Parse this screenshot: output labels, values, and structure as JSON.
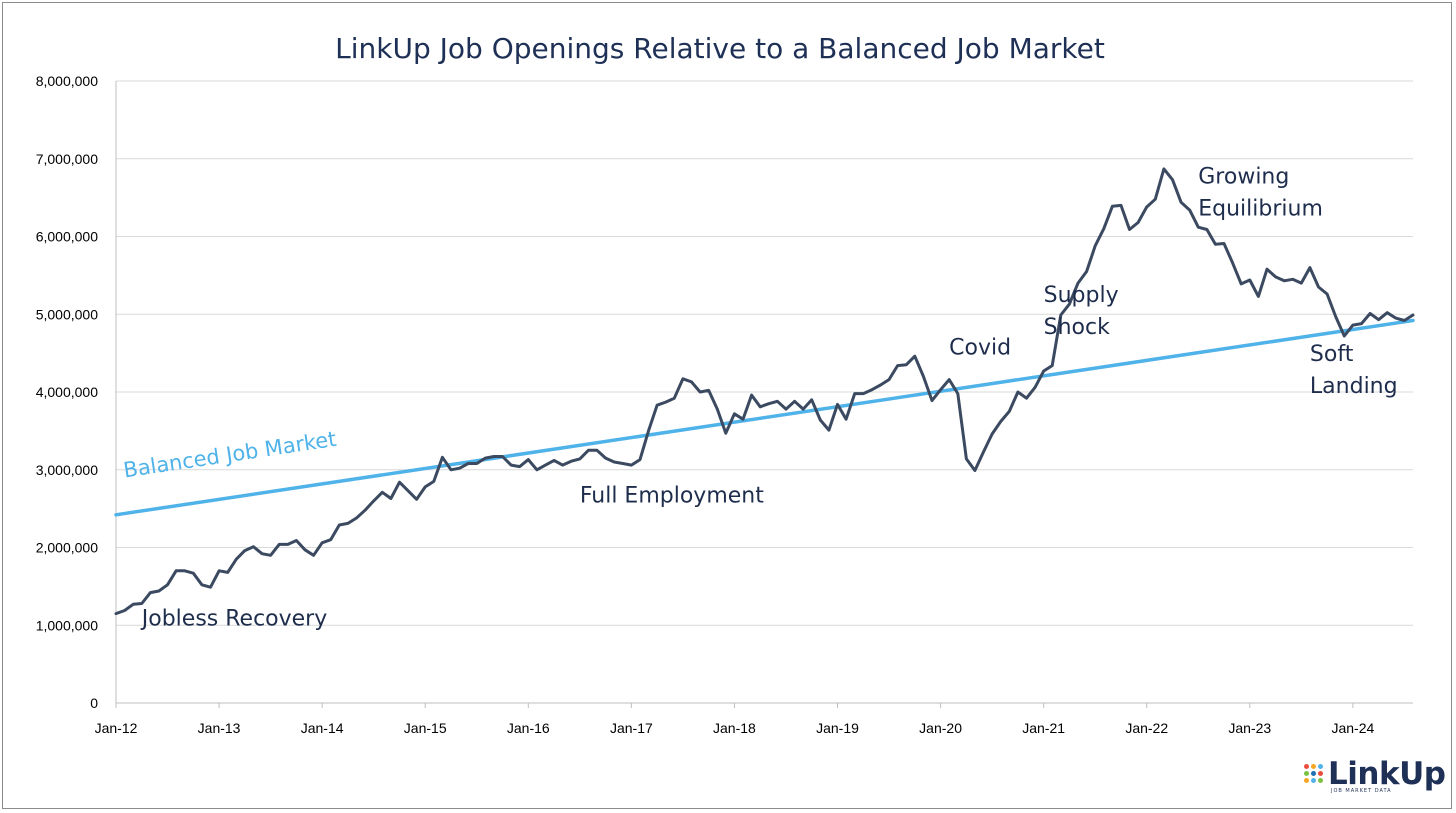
{
  "chart_data": {
    "type": "line",
    "title": "LinkUp Job Openings Relative to a Balanced Job Market",
    "xlabel": "",
    "ylabel": "",
    "x_tick_labels": [
      "Jan-12",
      "Jan-13",
      "Jan-14",
      "Jan-15",
      "Jan-16",
      "Jan-17",
      "Jan-18",
      "Jan-19",
      "Jan-20",
      "Jan-21",
      "Jan-22",
      "Jan-23",
      "Jan-24"
    ],
    "y_tick_labels": [
      "0",
      "1,000,000",
      "2,000,000",
      "3,000,000",
      "4,000,000",
      "5,000,000",
      "6,000,000",
      "7,000,000",
      "8,000,000"
    ],
    "ylim": [
      0,
      8000000
    ],
    "xlim": [
      "2012-01",
      "2024-08"
    ],
    "grid": "horizontal",
    "series": [
      {
        "color": "#3b4a60",
        "x": [
          "2012-01",
          "2012-02",
          "2012-03",
          "2012-04",
          "2012-05",
          "2012-06",
          "2012-07",
          "2012-08",
          "2012-09",
          "2012-10",
          "2012-11",
          "2012-12",
          "2013-01",
          "2013-02",
          "2013-03",
          "2013-04",
          "2013-05",
          "2013-06",
          "2013-07",
          "2013-08",
          "2013-09",
          "2013-10",
          "2013-11",
          "2013-12",
          "2014-01",
          "2014-02",
          "2014-03",
          "2014-04",
          "2014-05",
          "2014-06",
          "2014-07",
          "2014-08",
          "2014-09",
          "2014-10",
          "2014-11",
          "2014-12",
          "2015-01",
          "2015-02",
          "2015-03",
          "2015-04",
          "2015-05",
          "2015-06",
          "2015-07",
          "2015-08",
          "2015-09",
          "2015-10",
          "2015-11",
          "2015-12",
          "2016-01",
          "2016-02",
          "2016-03",
          "2016-04",
          "2016-05",
          "2016-06",
          "2016-07",
          "2016-08",
          "2016-09",
          "2016-10",
          "2016-11",
          "2016-12",
          "2017-01",
          "2017-02",
          "2017-03",
          "2017-04",
          "2017-05",
          "2017-06",
          "2017-07",
          "2017-08",
          "2017-09",
          "2017-10",
          "2017-11",
          "2017-12",
          "2018-01",
          "2018-02",
          "2018-03",
          "2018-04",
          "2018-05",
          "2018-06",
          "2018-07",
          "2018-08",
          "2018-09",
          "2018-10",
          "2018-11",
          "2018-12",
          "2019-01",
          "2019-02",
          "2019-03",
          "2019-04",
          "2019-05",
          "2019-06",
          "2019-07",
          "2019-08",
          "2019-09",
          "2019-10",
          "2019-11",
          "2019-12",
          "2020-01",
          "2020-02",
          "2020-03",
          "2020-04",
          "2020-05",
          "2020-06",
          "2020-07",
          "2020-08",
          "2020-09",
          "2020-10",
          "2020-11",
          "2020-12",
          "2021-01",
          "2021-02",
          "2021-03",
          "2021-04",
          "2021-05",
          "2021-06",
          "2021-07",
          "2021-08",
          "2021-09",
          "2021-10",
          "2021-11",
          "2021-12",
          "2022-01",
          "2022-02",
          "2022-03",
          "2022-04",
          "2022-05",
          "2022-06",
          "2022-07",
          "2022-08",
          "2022-09",
          "2022-10",
          "2022-11",
          "2022-12",
          "2023-01",
          "2023-02",
          "2023-03",
          "2023-04",
          "2023-05",
          "2023-06",
          "2023-07",
          "2023-08",
          "2023-09",
          "2023-10",
          "2023-11",
          "2023-12",
          "2024-01",
          "2024-02",
          "2024-03",
          "2024-04",
          "2024-05",
          "2024-06",
          "2024-07",
          "2024-08"
        ],
        "values": [
          1150000,
          1190000,
          1270000,
          1280000,
          1420000,
          1440000,
          1520000,
          1700000,
          1700000,
          1670000,
          1520000,
          1490000,
          1700000,
          1680000,
          1850000,
          1960000,
          2010000,
          1920000,
          1900000,
          2040000,
          2040000,
          2090000,
          1970000,
          1900000,
          2060000,
          2100000,
          2290000,
          2310000,
          2380000,
          2480000,
          2600000,
          2710000,
          2630000,
          2840000,
          2730000,
          2620000,
          2780000,
          2850000,
          3160000,
          3000000,
          3020000,
          3080000,
          3080000,
          3150000,
          3170000,
          3170000,
          3060000,
          3040000,
          3130000,
          3000000,
          3060000,
          3120000,
          3060000,
          3110000,
          3140000,
          3250000,
          3250000,
          3150000,
          3100000,
          3080000,
          3060000,
          3130000,
          3500000,
          3830000,
          3870000,
          3920000,
          4170000,
          4130000,
          4000000,
          4020000,
          3780000,
          3470000,
          3720000,
          3650000,
          3960000,
          3810000,
          3850000,
          3880000,
          3780000,
          3880000,
          3780000,
          3900000,
          3640000,
          3510000,
          3840000,
          3650000,
          3980000,
          3980000,
          4030000,
          4090000,
          4160000,
          4340000,
          4350000,
          4460000,
          4200000,
          3890000,
          4030000,
          4160000,
          3980000,
          3140000,
          2990000,
          3230000,
          3460000,
          3620000,
          3750000,
          4000000,
          3920000,
          4060000,
          4270000,
          4340000,
          4990000,
          5130000,
          5400000,
          5550000,
          5880000,
          6100000,
          6390000,
          6400000,
          6090000,
          6180000,
          6380000,
          6480000,
          6870000,
          6730000,
          6440000,
          6340000,
          6120000,
          6090000,
          5900000,
          5910000,
          5660000,
          5390000,
          5440000,
          5230000,
          5580000,
          5480000,
          5430000,
          5450000,
          5400000,
          5600000,
          5350000,
          5260000,
          4970000,
          4720000,
          4860000,
          4880000,
          5010000,
          4930000,
          5020000,
          4950000,
          4920000,
          4990000
        ]
      },
      {
        "color": "#4fb3ea",
        "x": [
          "2012-01",
          "2024-08"
        ],
        "values": [
          2420000,
          4920000
        ]
      }
    ],
    "annotations": [
      {
        "text": "Balanced Job Market",
        "x": "2012-02",
        "y": 2900000
      },
      {
        "text": "Jobless Recovery",
        "x": "2012-04",
        "y": 1000000
      },
      {
        "text": "Full Employment",
        "x": "2016-07",
        "y": 2580000
      },
      {
        "text": "Covid",
        "x": "2020-02",
        "y": 4480000
      },
      {
        "text": "Supply\nShock",
        "x": "2021-01",
        "y": 5160000
      },
      {
        "text": "Growing\nEquilibrium",
        "x": "2022-07",
        "y": 6680000
      },
      {
        "text": "Soft\nLanding",
        "x": "2023-08",
        "y": 4400000
      }
    ]
  },
  "logo": {
    "word": "LinkUp",
    "tagline": "JOB MARKET DATA",
    "dot_colors": [
      "#e94e3d",
      "#f5a623",
      "#4fb3ea",
      "#7dc243",
      "#1f6fb5",
      "#e94e3d",
      "#f5a623",
      "#4fb3ea",
      "#7dc243"
    ]
  }
}
